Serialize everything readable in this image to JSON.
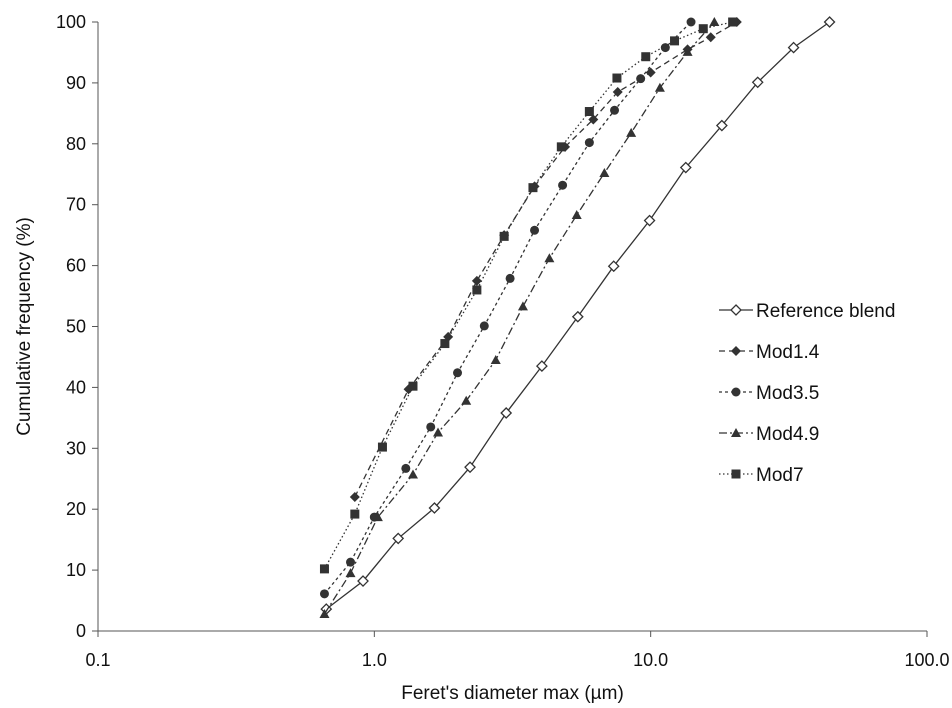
{
  "chart_data": {
    "type": "line",
    "title": "",
    "xlabel": "Feret's diameter max (µm)",
    "ylabel": "Cumulative frequency (%)",
    "x_scale": "log",
    "xlim": [
      0.1,
      100
    ],
    "ylim": [
      0,
      100
    ],
    "x_ticks": [
      "0.1",
      "1.0",
      "10.0",
      "100.0"
    ],
    "y_ticks": [
      "0",
      "10",
      "20",
      "30",
      "40",
      "50",
      "60",
      "70",
      "80",
      "90",
      "100"
    ],
    "grid": false,
    "legend_position": "right",
    "series": [
      {
        "name": "Reference blend",
        "marker": "open-diamond",
        "line": "solid",
        "color": "#333333",
        "x": [
          0.67,
          0.91,
          1.22,
          1.65,
          2.22,
          3.0,
          4.04,
          5.45,
          7.35,
          9.91,
          13.4,
          18.1,
          24.4,
          32.9,
          44.4
        ],
        "y": [
          3.6,
          8.2,
          15.2,
          20.2,
          26.9,
          35.8,
          43.5,
          51.6,
          59.9,
          67.4,
          76.1,
          83.0,
          90.1,
          95.8,
          100.0
        ]
      },
      {
        "name": "Mod1.4",
        "marker": "diamond",
        "line": "dashed",
        "color": "#333333",
        "x": [
          0.85,
          1.33,
          1.85,
          2.35,
          2.95,
          3.8,
          4.9,
          6.2,
          7.6,
          10.0,
          13.6,
          16.5,
          20.5
        ],
        "y": [
          22.0,
          39.7,
          48.3,
          57.5,
          65.0,
          73.0,
          79.5,
          84.0,
          88.5,
          91.7,
          95.5,
          97.5,
          100.0
        ]
      },
      {
        "name": "Mod3.5",
        "marker": "circle",
        "line": "short-dashed",
        "color": "#333333",
        "x": [
          0.66,
          0.82,
          1.0,
          1.3,
          1.6,
          2.0,
          2.5,
          3.1,
          3.8,
          4.8,
          6.0,
          7.4,
          9.2,
          11.3,
          14.0
        ],
        "y": [
          6.1,
          11.3,
          18.7,
          26.7,
          33.5,
          42.4,
          50.1,
          57.9,
          65.8,
          73.2,
          80.2,
          85.5,
          90.7,
          95.8,
          100.0
        ]
      },
      {
        "name": "Mod4.9",
        "marker": "triangle",
        "line": "dash-dot",
        "color": "#333333",
        "x": [
          0.66,
          0.82,
          1.03,
          1.38,
          1.7,
          2.15,
          2.75,
          3.45,
          4.3,
          5.4,
          6.8,
          8.5,
          10.8,
          13.6,
          17.0
        ],
        "y": [
          2.8,
          9.5,
          18.7,
          25.7,
          32.6,
          37.8,
          44.5,
          53.3,
          61.2,
          68.3,
          75.2,
          81.8,
          89.2,
          95.1,
          100.0
        ]
      },
      {
        "name": "Mod7",
        "marker": "square",
        "line": "dotted",
        "color": "#333333",
        "x": [
          0.66,
          0.85,
          1.07,
          1.38,
          1.8,
          2.35,
          2.95,
          3.75,
          4.75,
          6.0,
          7.55,
          9.6,
          12.2,
          15.5,
          19.8
        ],
        "y": [
          10.2,
          19.2,
          30.2,
          40.2,
          47.2,
          56.0,
          64.8,
          72.8,
          79.5,
          85.3,
          90.8,
          94.3,
          96.9,
          98.9,
          100.0
        ]
      }
    ]
  }
}
